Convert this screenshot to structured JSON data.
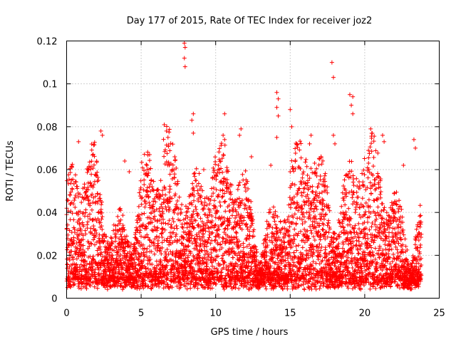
{
  "chart_data": {
    "type": "scatter",
    "title": "Day 177 of 2015, Rate Of TEC Index for receiver joz2",
    "xlabel": "GPS time / hours",
    "ylabel": "ROTI / TECUs",
    "xlim": [
      0,
      25
    ],
    "ylim": [
      0,
      0.12
    ],
    "xticks": [
      0,
      5,
      10,
      15,
      20,
      25
    ],
    "xtick_labels": [
      "0",
      "5",
      "10",
      "15",
      "20",
      "25"
    ],
    "yticks": [
      0,
      0.02,
      0.04,
      0.06,
      0.08,
      0.1,
      0.12
    ],
    "ytick_labels": [
      "0",
      "0.02",
      "0.04",
      "0.06",
      "0.08",
      "0.1",
      "0.12"
    ],
    "grid": true,
    "marker": "plus",
    "color": "#ff0000",
    "x_extent_hours": [
      0,
      23.8
    ],
    "series": [
      {
        "name": "ROTI",
        "points": [
          [
            7.9,
            0.119
          ],
          [
            7.95,
            0.117
          ],
          [
            7.9,
            0.112
          ],
          [
            7.95,
            0.108
          ],
          [
            17.8,
            0.11
          ],
          [
            17.9,
            0.103
          ],
          [
            14.1,
            0.096
          ],
          [
            14.2,
            0.093
          ],
          [
            14.1,
            0.089
          ],
          [
            14.2,
            0.085
          ],
          [
            19.0,
            0.095
          ],
          [
            19.2,
            0.094
          ],
          [
            19.1,
            0.09
          ],
          [
            19.2,
            0.086
          ],
          [
            15.0,
            0.088
          ],
          [
            15.1,
            0.08
          ],
          [
            8.5,
            0.086
          ],
          [
            8.4,
            0.083
          ],
          [
            8.5,
            0.077
          ],
          [
            10.6,
            0.086
          ],
          [
            6.7,
            0.078
          ],
          [
            6.8,
            0.075
          ],
          [
            2.3,
            0.078
          ],
          [
            2.4,
            0.076
          ],
          [
            11.7,
            0.079
          ],
          [
            11.6,
            0.076
          ],
          [
            10.5,
            0.076
          ],
          [
            10.6,
            0.074
          ],
          [
            16.4,
            0.076
          ],
          [
            16.3,
            0.072
          ],
          [
            20.4,
            0.079
          ],
          [
            20.5,
            0.077
          ],
          [
            21.2,
            0.076
          ],
          [
            21.3,
            0.073
          ],
          [
            23.3,
            0.074
          ],
          [
            23.4,
            0.07
          ],
          [
            0.8,
            0.073
          ],
          [
            14.1,
            0.075
          ],
          [
            17.9,
            0.076
          ],
          [
            18.0,
            0.072
          ],
          [
            22.6,
            0.062
          ],
          [
            3.9,
            0.064
          ],
          [
            4.2,
            0.059
          ],
          [
            5.4,
            0.06
          ],
          [
            12.4,
            0.066
          ],
          [
            13.7,
            0.062
          ],
          [
            15.0,
            0.059
          ],
          [
            9.2,
            0.06
          ]
        ]
      }
    ]
  }
}
